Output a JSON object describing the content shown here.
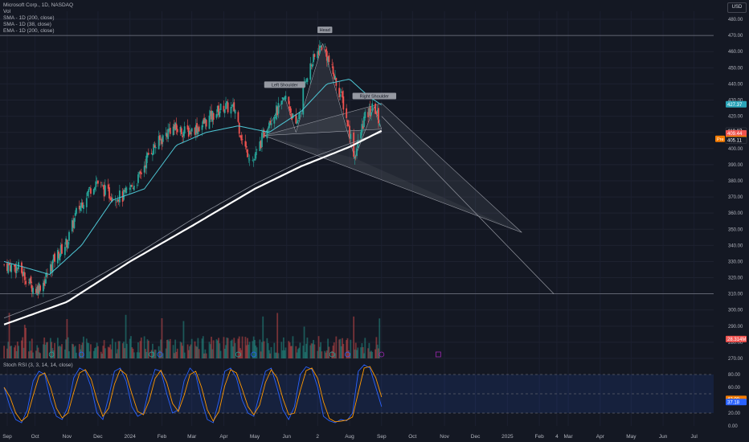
{
  "legend": {
    "symbol": "Microsoft Corp., 1D, NASDAQ",
    "vol": "Vol",
    "sma200": "SMA - 1D (200, close)",
    "sma38": "SMA - 1D (38, close)",
    "ema200": "EMA - 1D (200, close)"
  },
  "stoch_label": "Stoch RSI (3, 3, 14, 14, close)",
  "currency": "USD",
  "colors": {
    "background": "#141823",
    "up": "#26a69a",
    "down": "#ef5350",
    "sma38": "#4ec8d6",
    "sma200": "#ffffff",
    "ema200": "#8a8f99",
    "stoch_k": "#2962ff",
    "stoch_d": "#ff9800",
    "pattern_fill": "#787b86"
  },
  "chart_data": [
    {
      "type": "candlestick",
      "title": "Microsoft Corp., 1D, NASDAQ",
      "x_ticks": [
        "Sep",
        "Oct",
        "Nov",
        "Dec",
        "2024",
        "Feb",
        "Mar",
        "Apr",
        "May",
        "Jun",
        "2",
        "Aug",
        "Sep",
        "Oct",
        "Nov",
        "Dec",
        "2025",
        "Feb",
        "4",
        "Mar",
        "Apr",
        "May",
        "Jun",
        "Jul"
      ],
      "y_ticks": [
        480,
        470,
        460,
        450,
        440,
        430,
        420,
        410,
        400,
        390,
        380,
        370,
        360,
        350,
        340,
        330,
        320,
        310,
        300,
        290,
        280,
        270
      ],
      "ylim": [
        270,
        485
      ],
      "price_path": [
        [
          "2023-09-01",
          328
        ],
        [
          "2023-09-15",
          326
        ],
        [
          "2023-10-01",
          312
        ],
        [
          "2023-10-10",
          318
        ],
        [
          "2023-10-20",
          332
        ],
        [
          "2023-11-01",
          342
        ],
        [
          "2023-11-10",
          360
        ],
        [
          "2023-11-20",
          372
        ],
        [
          "2023-11-29",
          380
        ],
        [
          "2023-12-10",
          372
        ],
        [
          "2023-12-25",
          370
        ],
        [
          "2024-01-10",
          382
        ],
        [
          "2024-01-20",
          398
        ],
        [
          "2024-02-01",
          406
        ],
        [
          "2024-02-10",
          413
        ],
        [
          "2024-02-25",
          410
        ],
        [
          "2024-03-10",
          414
        ],
        [
          "2024-03-20",
          420
        ],
        [
          "2024-04-01",
          426
        ],
        [
          "2024-04-12",
          424
        ],
        [
          "2024-04-20",
          402
        ],
        [
          "2024-04-30",
          392
        ],
        [
          "2024-05-15",
          418
        ],
        [
          "2024-05-25",
          425
        ],
        [
          "2024-06-01",
          432
        ],
        [
          "2024-06-10",
          412
        ],
        [
          "2024-06-20",
          445
        ],
        [
          "2024-07-01",
          460
        ],
        [
          "2024-07-06",
          465
        ],
        [
          "2024-07-15",
          448
        ],
        [
          "2024-07-25",
          430
        ],
        [
          "2024-08-01",
          410
        ],
        [
          "2024-08-06",
          395
        ],
        [
          "2024-08-15",
          418
        ],
        [
          "2024-08-25",
          426
        ],
        [
          "2024-09-01",
          413
        ]
      ],
      "sma38": [
        [
          "2023-09-01",
          330
        ],
        [
          "2023-10-15",
          322
        ],
        [
          "2023-11-15",
          340
        ],
        [
          "2023-12-15",
          368
        ],
        [
          "2024-01-15",
          375
        ],
        [
          "2024-02-15",
          402
        ],
        [
          "2024-03-15",
          410
        ],
        [
          "2024-04-15",
          414
        ],
        [
          "2024-05-15",
          410
        ],
        [
          "2024-06-15",
          423
        ],
        [
          "2024-07-10",
          440
        ],
        [
          "2024-08-01",
          443
        ],
        [
          "2024-08-20",
          432
        ],
        [
          "2024-09-01",
          427
        ]
      ],
      "sma200": [
        [
          "2023-09-01",
          291
        ],
        [
          "2023-11-01",
          305
        ],
        [
          "2024-01-01",
          330
        ],
        [
          "2024-03-01",
          352
        ],
        [
          "2024-05-01",
          375
        ],
        [
          "2024-06-15",
          389
        ],
        [
          "2024-08-01",
          401
        ],
        [
          "2024-09-01",
          411
        ]
      ],
      "ema200": [
        [
          "2023-09-01",
          295
        ],
        [
          "2023-11-01",
          310
        ],
        [
          "2024-01-01",
          332
        ],
        [
          "2024-03-01",
          356
        ],
        [
          "2024-05-01",
          378
        ],
        [
          "2024-06-15",
          392
        ],
        [
          "2024-08-01",
          403
        ],
        [
          "2024-09-01",
          410
        ]
      ],
      "pattern_labels": [
        {
          "text": "Left Shoulder",
          "date": "2024-05-30",
          "price": 439
        },
        {
          "text": "Head",
          "date": "2024-07-08",
          "price": 473
        },
        {
          "text": "Right Shoulder",
          "date": "2024-08-25",
          "price": 432
        }
      ],
      "pattern_triangle": [
        [
          "2024-05-10",
          408
        ],
        [
          "2024-09-01",
          428
        ],
        [
          "2025-01-15",
          348
        ],
        [
          "2024-05-10",
          408
        ]
      ],
      "neckline_zone": [
        [
          "2024-05-10",
          408
        ],
        [
          "2025-01-15",
          348
        ],
        [
          "2024-08-06",
          394
        ]
      ],
      "target_line": [
        [
          "2024-09-01",
          420
        ],
        [
          "2025-02-15",
          310
        ]
      ],
      "horizontal_levels": [
        470,
        310
      ],
      "price_labels": [
        {
          "text": "427.37",
          "price": 427.37,
          "color": "#2aa5b8"
        },
        {
          "text": "410.87",
          "price": 410.87,
          "color": "#141823"
        },
        {
          "text": "409.44",
          "price": 409.44,
          "color": "#ef5350"
        },
        {
          "text": "405.99",
          "price": 405.99,
          "color": "#f57c00"
        },
        {
          "text": "405.11",
          "price": 405.11,
          "color": "#141823"
        },
        {
          "text": "28.314M",
          "price": 282,
          "color": "#ef5350"
        }
      ],
      "price_badge": "Pre"
    },
    {
      "type": "line",
      "title": "Stoch RSI (3, 3, 14, 14, close)",
      "y_ticks": [
        80,
        60,
        40,
        20,
        0
      ],
      "ylim": [
        0,
        100
      ],
      "bands": [
        20,
        50,
        80
      ],
      "k_values": [
        60,
        30,
        10,
        5,
        25,
        70,
        85,
        80,
        40,
        15,
        10,
        30,
        75,
        90,
        85,
        60,
        20,
        10,
        45,
        85,
        90,
        70,
        30,
        15,
        20,
        60,
        88,
        85,
        50,
        20,
        25,
        70,
        90,
        80,
        40,
        10,
        5,
        40,
        85,
        90,
        75,
        40,
        20,
        15,
        50,
        85,
        90,
        60,
        25,
        10,
        30,
        80,
        92,
        88,
        60,
        15,
        8,
        5,
        10,
        8,
        20,
        85,
        95,
        90,
        60,
        30
      ],
      "value_labels": [
        {
          "text": "42.00",
          "value": 42,
          "color": "#f57c00"
        },
        {
          "text": "37.18",
          "value": 37.18,
          "color": "#2962ff"
        }
      ]
    }
  ]
}
